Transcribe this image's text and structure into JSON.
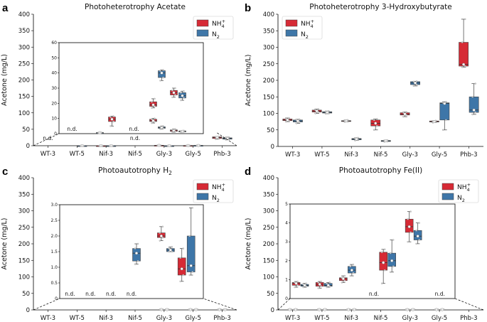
{
  "colors": {
    "nh4": "#d62a35",
    "n2": "#3e76a8",
    "dot": "#cfcfcf"
  },
  "legend": {
    "nh4": "NH4+",
    "n2": "N2"
  },
  "chart_data": [
    {
      "panel": "a",
      "type": "box",
      "title": "Photoheterotrophy Acetate",
      "ylabel": "Acetone (mg/L)",
      "categories": [
        "WT-3",
        "WT-5",
        "Nif-3",
        "Nif-5",
        "Gly-3",
        "Gly-5",
        "Phb-3"
      ],
      "ylim": [
        0,
        400
      ],
      "yticks": [
        "0",
        "50",
        "100",
        "150",
        "200",
        "250",
        "300",
        "350",
        "400"
      ],
      "series": [
        {
          "name": "NH4+",
          "boxes": [
            null,
            null,
            [
              0,
              0,
              0,
              0,
              0
            ],
            null,
            [
              0.5,
              0.8,
              1,
              1.2,
              1.5
            ],
            [
              0.2,
              0.4,
              0.5,
              0.7,
              1
            ],
            [
              20,
              22,
              25,
              27,
              28
            ]
          ]
        },
        {
          "name": "N2",
          "boxes": [
            null,
            [
              0,
              0,
              0,
              0,
              0
            ],
            [
              0,
              0,
              0,
              0,
              0
            ],
            null,
            [
              0,
              0,
              0,
              0,
              0
            ],
            [
              0.3,
              0.5,
              0.7,
              0.9,
              1.2
            ],
            [
              18,
              20,
              22,
              24,
              26
            ]
          ]
        }
      ],
      "nd_labels": [
        {
          "cat": "WT-3",
          "text": "n.d."
        },
        {
          "cat": "Nif-5",
          "text": "n.d."
        }
      ],
      "inset": {
        "ylim": [
          0,
          60
        ],
        "yticks": [
          "0",
          "10",
          "20",
          "30",
          "40",
          "50",
          "60"
        ],
        "series": [
          {
            "name": "NH4+",
            "boxes": [
              null,
              null,
              [
                5,
                8,
                9.5,
                11,
                11.5
              ],
              null,
              [
                1,
                1.5,
                2,
                2.3,
                2.6
              ],
              [
                0.1,
                0.2,
                0.4,
                0.5,
                0.6
              ],
              [
                0.2,
                0.3,
                0.4,
                0.6,
                0.8
              ]
            ]
          },
          {
            "name": "N2",
            "boxes": [
              null,
              [
                0.2,
                0.3,
                0.4,
                0.5,
                0.6
              ],
              [
                0.8,
                1.2,
                1.5,
                2,
                2.5
              ],
              null,
              [
                35,
                36,
                38,
                41,
                42
              ],
              [
                0,
                0,
                0,
                0,
                0
              ],
              [
                0.3,
                0.4,
                0.5,
                0.6,
                0.8
              ]
            ]
          }
        ],
        "nh4_extra": [
          {
            "cat": "Nif-3",
            "box": [
              5,
              8,
              9.5,
              11,
              11.5
            ]
          },
          {
            "cat": "Gly-3",
            "box": [
              17,
              18,
              19,
              21,
              23
            ]
          },
          {
            "cat": "Gly-5",
            "box": [
              24,
              25.5,
              27,
              28.5,
              30
            ]
          }
        ],
        "n2_extra": [
          {
            "cat": "Gly-3",
            "box": [
              35,
              37,
              40,
              41.5,
              42
            ]
          },
          {
            "cat": "Gly-5",
            "box": [
              22,
              23.5,
              25,
              27,
              28
            ]
          }
        ],
        "nh4_small": [
          {
            "cat": "Gly-3",
            "box": [
              7,
              8,
              8.5,
              9.5,
              10
            ]
          },
          {
            "cat": "Gly-5",
            "box": [
              1,
              1.5,
              2,
              2.5,
              3
            ]
          }
        ],
        "n2_small": [
          {
            "cat": "Gly-3",
            "box": [
              3,
              3.5,
              4,
              4.5,
              5
            ]
          },
          {
            "cat": "Gly-5",
            "box": [
              1,
              1.2,
              1.5,
              1.8,
              2
            ]
          }
        ],
        "nd_labels": [
          {
            "cat": "WT-3",
            "text": "n.d."
          },
          {
            "cat": "Nif-5",
            "text": "n.d."
          }
        ]
      }
    },
    {
      "panel": "b",
      "type": "box",
      "title": "Photoheterotrophy 3-Hydroxybutyrate",
      "ylabel": "Acetone (mg/L)",
      "categories": [
        "WT-3",
        "WT-5",
        "Nif-3",
        "Nif-5",
        "Gly-3",
        "Gly-5",
        "Phb-3"
      ],
      "ylim": [
        0,
        400
      ],
      "yticks": [
        "0",
        "50",
        "100",
        "150",
        "200",
        "250",
        "300",
        "350",
        "400"
      ],
      "series": [
        {
          "name": "NH4+",
          "boxes": [
            [
              75,
              78,
              80,
              83,
              86
            ],
            [
              100,
              104,
              107,
              110,
              113
            ],
            [
              74,
              76,
              77,
              78,
              80
            ],
            [
              50,
              62,
              70,
              80,
              83
            ],
            [
              90,
              95,
              98,
              102,
              104
            ],
            [
              72,
              74,
              75,
              77,
              78
            ],
            [
              240,
              243,
              248,
              315,
              385
            ]
          ]
        },
        {
          "name": "N2",
          "boxes": [
            [
              70,
              74,
              77,
              80,
              82
            ],
            [
              99,
              101,
              103,
              105,
              107
            ],
            [
              18,
              20,
              22,
              24,
              26
            ],
            [
              14,
              15,
              17,
              18,
              19
            ],
            [
              183,
              187,
              192,
              196,
              197
            ],
            [
              50,
              80,
              130,
              132,
              135
            ],
            [
              97,
              103,
              110,
              150,
              190
            ]
          ]
        }
      ]
    },
    {
      "panel": "c",
      "type": "box",
      "title": "Photoautotrophy H2",
      "ylabel": "Acetone (mg/L)",
      "categories": [
        "WT-3",
        "WT-5",
        "Nif-3",
        "Nif-5",
        "Gly-3",
        "Gly-5",
        "Phb-3"
      ],
      "ylim": [
        0,
        400
      ],
      "yticks": [
        "0",
        "50",
        "100",
        "150",
        "200",
        "250",
        "300",
        "350",
        "400"
      ],
      "inset": {
        "ylim": [
          0,
          3.0
        ],
        "yticks": [
          "0",
          "0.5",
          "1.0",
          "1.5",
          "2.0",
          "2.5",
          "3.0"
        ],
        "nd_labels": [
          {
            "cat": "WT-3",
            "text": "n.d."
          },
          {
            "cat": "WT-5",
            "text": "n.d."
          },
          {
            "cat": "Nif-3",
            "text": "n.d."
          },
          {
            "cat": "Nif-5",
            "text": "n.d."
          }
        ],
        "nh4_boxes": [
          {
            "cat": "Gly-5",
            "box": [
              1.85,
              1.95,
              2.0,
              2.1,
              2.3
            ]
          },
          {
            "cat": "Phb-3",
            "box": [
              0.55,
              0.75,
              0.95,
              1.3,
              1.6
            ]
          }
        ],
        "n2_boxes": [
          {
            "cat": "Gly-3",
            "box": [
              1.1,
              1.2,
              1.45,
              1.6,
              1.75
            ]
          },
          {
            "cat": "Gly-5",
            "box": [
              1.5,
              1.5,
              1.55,
              1.6,
              1.65
            ]
          },
          {
            "cat": "Phb-3",
            "box": [
              0.75,
              0.85,
              1.05,
              2.0,
              2.9
            ]
          }
        ]
      }
    },
    {
      "panel": "d",
      "type": "box",
      "title": "Photoautotrophy Fe(II)",
      "ylabel": "Acetone (mg/L)",
      "categories": [
        "WT-3",
        "WT-5",
        "Nif-3",
        "Nif-5",
        "Gly-3",
        "Gly-5",
        "Phb-3"
      ],
      "ylim": [
        0,
        400
      ],
      "yticks": [
        "0",
        "50",
        "100",
        "150",
        "200",
        "250",
        "300",
        "350",
        "400"
      ],
      "inset": {
        "ylim": [
          0,
          5
        ],
        "yticks": [
          "0",
          "1",
          "2",
          "3",
          "4",
          "5"
        ],
        "nd_labels": [
          {
            "cat": "Nif-5",
            "text": "n.d."
          },
          {
            "cat": "Phb-3",
            "text": "n.d."
          }
        ],
        "nh4_boxes": [
          {
            "cat": "WT-3",
            "box": [
              0.6,
              0.7,
              0.8,
              0.85,
              0.9
            ]
          },
          {
            "cat": "WT-5",
            "box": [
              0.55,
              0.65,
              0.75,
              0.85,
              0.9
            ]
          },
          {
            "cat": "Nif-3",
            "box": [
              0.85,
              0.95,
              1.05,
              1.1,
              1.2
            ]
          },
          {
            "cat": "Gly-3",
            "box": [
              0.8,
              1.5,
              1.9,
              2.45,
              2.6
            ]
          },
          {
            "cat": "Gly-5",
            "box": [
              3.0,
              3.5,
              3.8,
              4.2,
              4.6
            ]
          }
        ],
        "n2_boxes": [
          {
            "cat": "WT-3",
            "box": [
              0.6,
              0.65,
              0.7,
              0.75,
              0.8
            ]
          },
          {
            "cat": "WT-5",
            "box": [
              0.6,
              0.65,
              0.7,
              0.8,
              0.85
            ]
          },
          {
            "cat": "Nif-3",
            "box": [
              1.2,
              1.35,
              1.5,
              1.7,
              1.8
            ]
          },
          {
            "cat": "Gly-3",
            "box": [
              1.4,
              1.7,
              2.0,
              2.4,
              3.1
            ]
          },
          {
            "cat": "Gly-5",
            "box": [
              2.9,
              3.1,
              3.3,
              3.6,
              4.0
            ]
          }
        ]
      }
    }
  ]
}
